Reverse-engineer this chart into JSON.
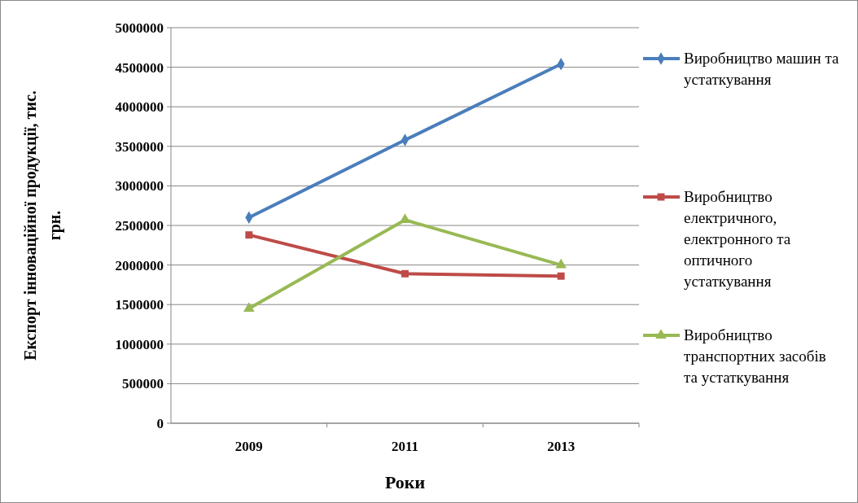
{
  "chart_data": {
    "type": "line",
    "xlabel": "Роки",
    "ylabel": "Експорт інноваційної продукції, тис. грн.",
    "categories": [
      "2009",
      "2011",
      "2013"
    ],
    "series": [
      {
        "name": "Виробництво машин та устаткування",
        "color": "#4a7ebb",
        "marker": "diamond",
        "values": [
          2600000,
          3580000,
          4540000
        ]
      },
      {
        "name": "Виробництво електричного, електронного та оптичного устаткування",
        "color": "#be4b48",
        "marker": "square",
        "values": [
          2380000,
          1890000,
          1860000
        ]
      },
      {
        "name": "Виробництво транспортних засобів та устаткування",
        "color": "#98b954",
        "marker": "triangle",
        "values": [
          1450000,
          2570000,
          2000000
        ]
      }
    ],
    "ylim": [
      0,
      5000000
    ],
    "yticks": [
      0,
      500000,
      1000000,
      1500000,
      2000000,
      2500000,
      3000000,
      3500000,
      4000000,
      4500000,
      5000000
    ],
    "grid": "y",
    "legend": "right",
    "line_style": "solid"
  }
}
